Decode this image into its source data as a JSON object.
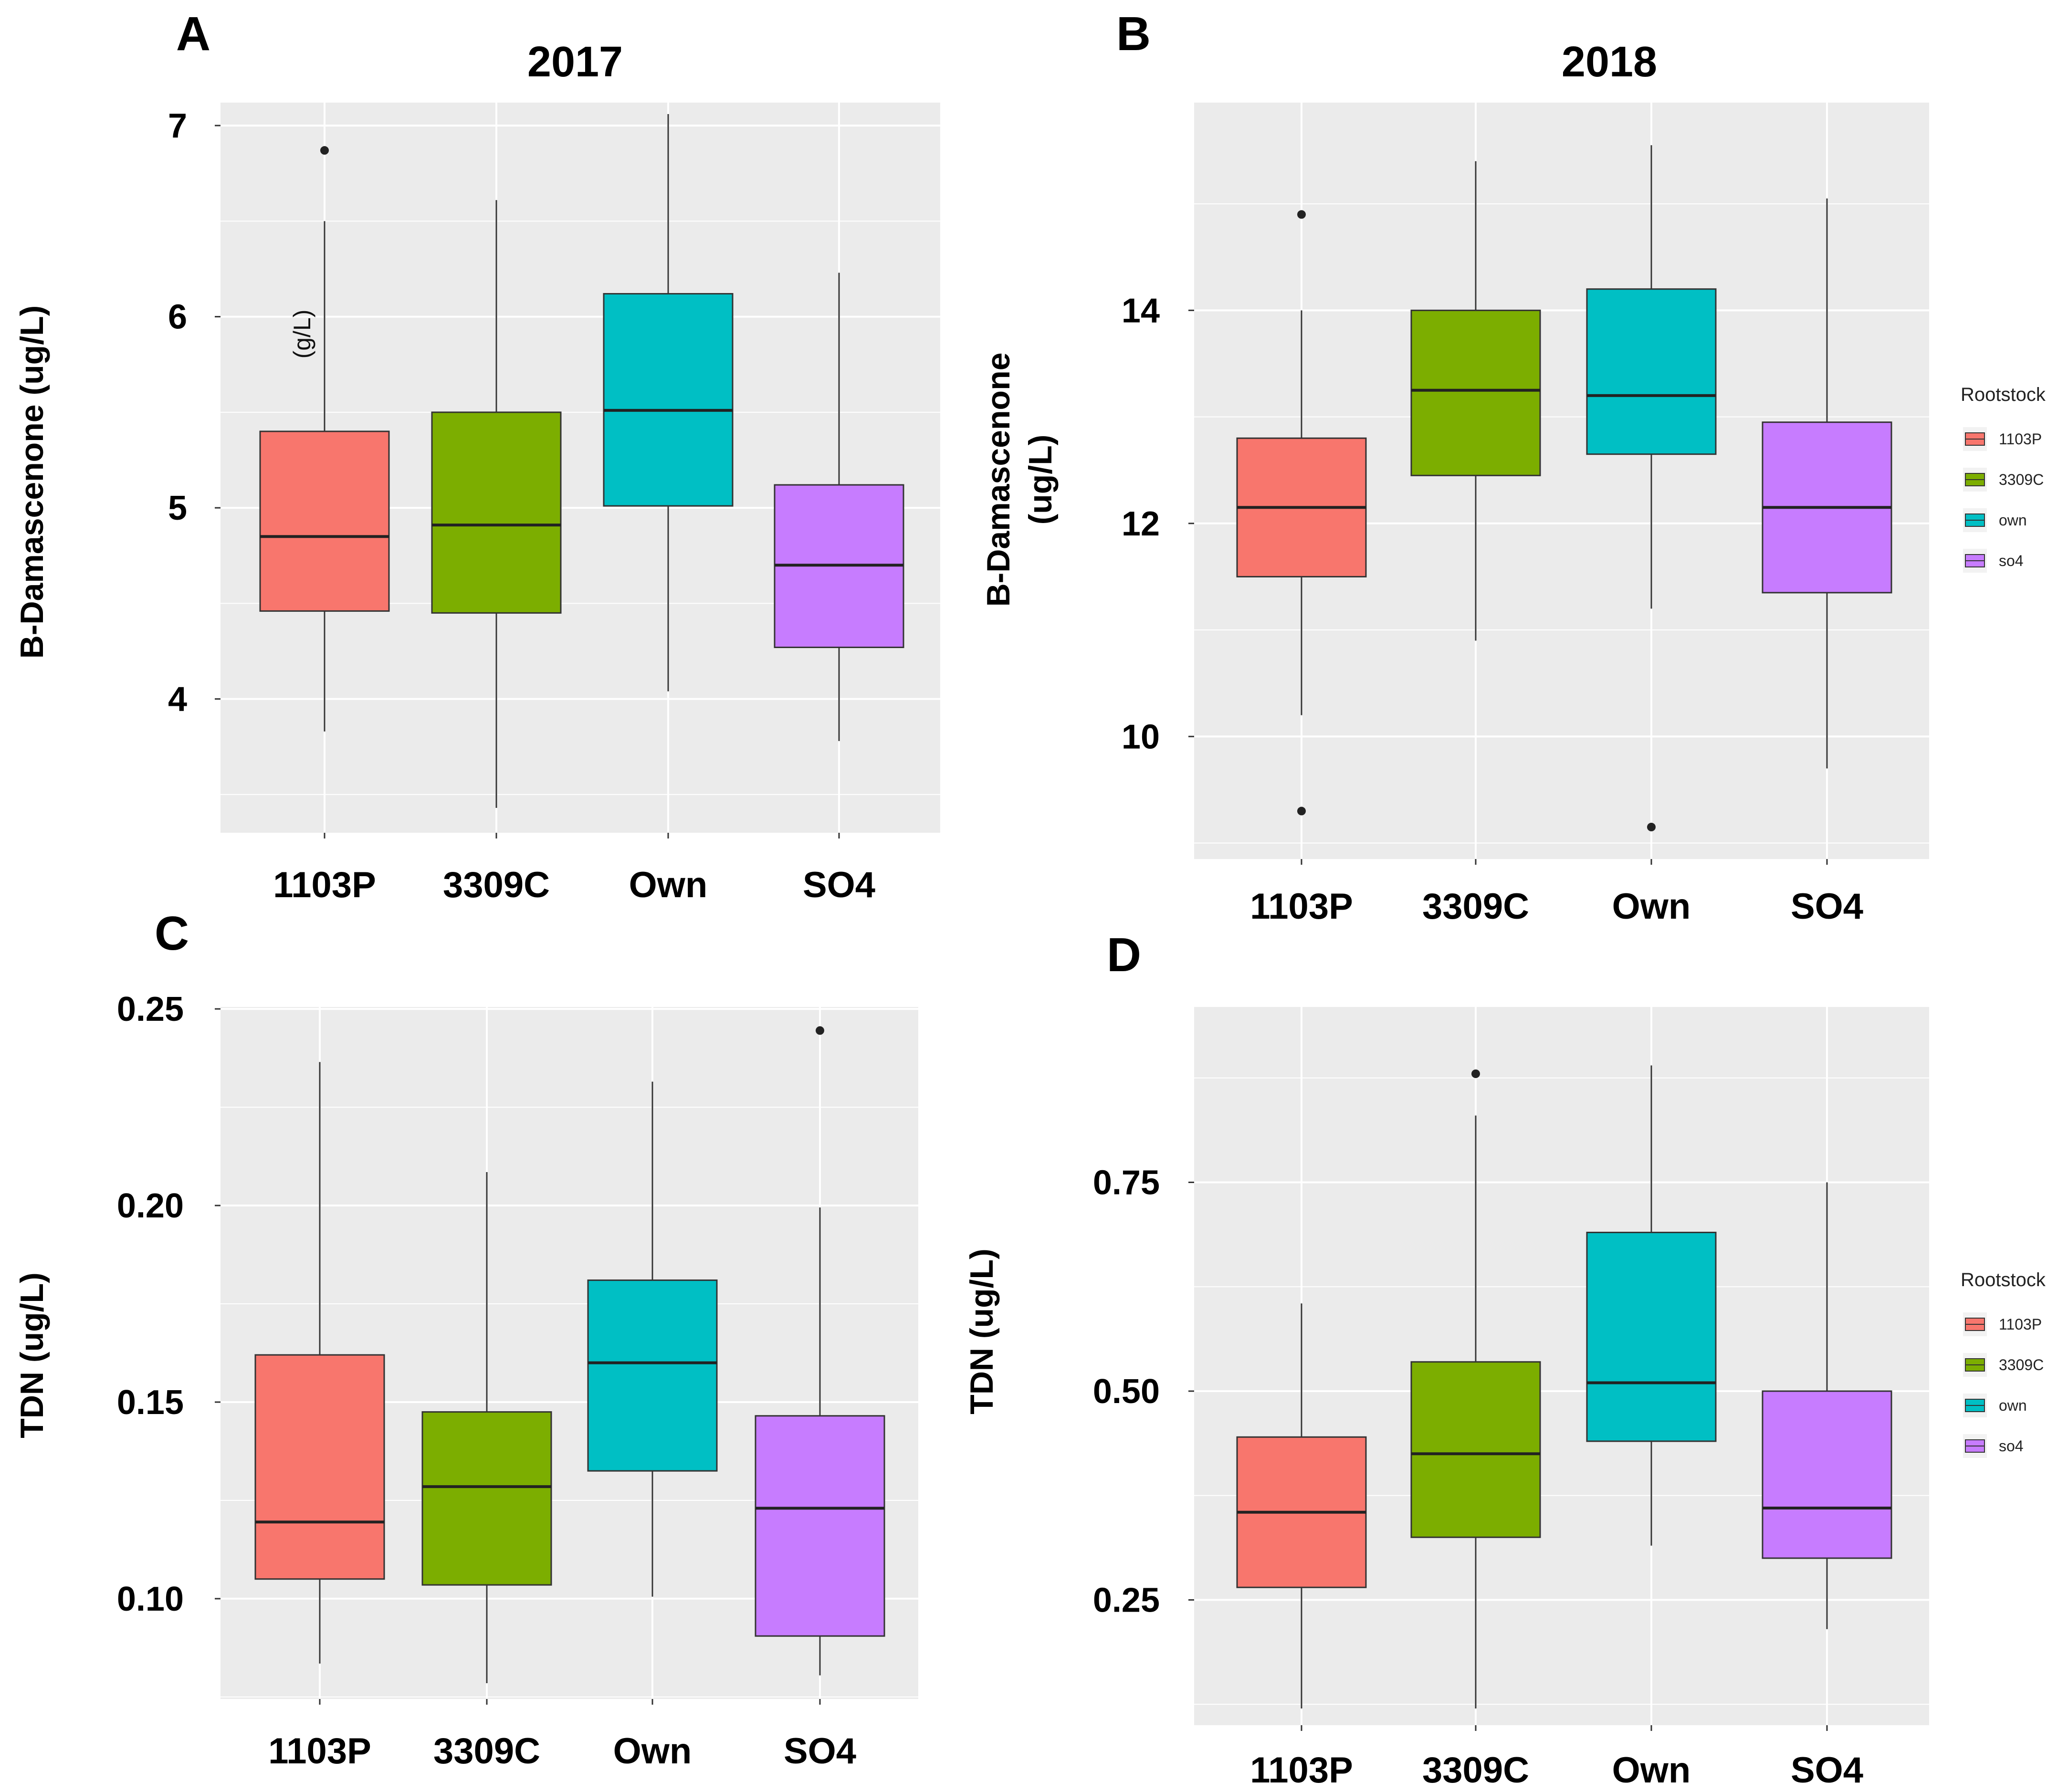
{
  "colors": {
    "1103P": "#F8766D",
    "3309C": "#7CAE00",
    "own": "#00BFC4",
    "so4": "#C77CFF",
    "panel_bg": "#EBEBEB",
    "grid": "#FFFFFF"
  },
  "chart_data": [
    {
      "panel": "A",
      "type": "box",
      "title": "2017",
      "ylabel": "B-Damascenone (ug/L)",
      "ylim": [
        3.3,
        7.12
      ],
      "yticks": [
        4,
        5,
        6,
        7
      ],
      "ytick_labels": [
        "4",
        "5",
        "6",
        "7"
      ],
      "categories": [
        "1103P",
        "3309C",
        "Own",
        "SO4"
      ],
      "annotation": "(g/L)",
      "boxes": [
        {
          "name": "1103P",
          "whisker_low": 3.83,
          "q1": 4.46,
          "median": 4.85,
          "q3": 5.4,
          "whisker_high": 6.5,
          "outliers": [
            6.87
          ]
        },
        {
          "name": "3309C",
          "whisker_low": 3.43,
          "q1": 4.45,
          "median": 4.91,
          "q3": 5.5,
          "whisker_high": 6.61,
          "outliers": []
        },
        {
          "name": "Own",
          "whisker_low": 4.04,
          "q1": 5.01,
          "median": 5.51,
          "q3": 6.12,
          "whisker_high": 7.06,
          "outliers": []
        },
        {
          "name": "SO4",
          "whisker_low": 3.78,
          "q1": 4.27,
          "median": 4.7,
          "q3": 5.12,
          "whisker_high": 6.23,
          "outliers": []
        }
      ]
    },
    {
      "panel": "B",
      "type": "box",
      "title": "2018",
      "ylabel": "B-Damascenone (ug/L)",
      "ylim": [
        8.85,
        15.95
      ],
      "yticks": [
        10,
        12,
        14
      ],
      "ytick_labels": [
        "10",
        "12",
        "14"
      ],
      "categories": [
        "1103P",
        "3309C",
        "Own",
        "SO4"
      ],
      "legend": {
        "title": "Rootstock",
        "items": [
          "1103P",
          "3309C",
          "own",
          "so4"
        ]
      },
      "boxes": [
        {
          "name": "1103P",
          "whisker_low": 10.2,
          "q1": 11.5,
          "median": 12.15,
          "q3": 12.8,
          "whisker_high": 14.0,
          "outliers": [
            14.9,
            9.3
          ]
        },
        {
          "name": "3309C",
          "whisker_low": 10.9,
          "q1": 12.45,
          "median": 13.25,
          "q3": 14.0,
          "whisker_high": 15.4,
          "outliers": []
        },
        {
          "name": "Own",
          "whisker_low": 11.2,
          "q1": 12.65,
          "median": 13.2,
          "q3": 14.2,
          "whisker_high": 15.55,
          "outliers": [
            9.15
          ]
        },
        {
          "name": "SO4",
          "whisker_low": 9.7,
          "q1": 11.35,
          "median": 12.15,
          "q3": 12.95,
          "whisker_high": 15.05,
          "outliers": []
        }
      ]
    },
    {
      "panel": "C",
      "type": "box",
      "ylabel": "TDN (ug/L)",
      "ylim": [
        0.0745,
        0.2505
      ],
      "yticks": [
        0.1,
        0.15,
        0.2,
        0.25
      ],
      "ytick_labels": [
        "0.10",
        "0.15",
        "0.20",
        "0.25"
      ],
      "categories": [
        "1103P",
        "3309C",
        "Own",
        "SO4"
      ],
      "boxes": [
        {
          "name": "1103P",
          "whisker_low": 0.0835,
          "q1": 0.105,
          "median": 0.1195,
          "q3": 0.162,
          "whisker_high": 0.2365,
          "outliers": []
        },
        {
          "name": "3309C",
          "whisker_low": 0.0785,
          "q1": 0.1035,
          "median": 0.1285,
          "q3": 0.1475,
          "whisker_high": 0.2085,
          "outliers": []
        },
        {
          "name": "Own",
          "whisker_low": 0.1005,
          "q1": 0.1325,
          "median": 0.16,
          "q3": 0.181,
          "whisker_high": 0.2315,
          "outliers": []
        },
        {
          "name": "SO4",
          "whisker_low": 0.0805,
          "q1": 0.0905,
          "median": 0.123,
          "q3": 0.1465,
          "whisker_high": 0.1995,
          "outliers": [
            0.2445
          ]
        }
      ]
    },
    {
      "panel": "D",
      "type": "box",
      "ylabel": "TDN (ug/L)",
      "ylim": [
        0.1,
        0.96
      ],
      "yticks": [
        0.25,
        0.5,
        0.75
      ],
      "ytick_labels": [
        "0.25",
        "0.50",
        "0.75"
      ],
      "categories": [
        "1103P",
        "3309C",
        "Own",
        "SO4"
      ],
      "legend": {
        "title": "Rootstock",
        "items": [
          "1103P",
          "3309C",
          "own",
          "so4"
        ]
      },
      "boxes": [
        {
          "name": "1103P",
          "whisker_low": 0.12,
          "q1": 0.265,
          "median": 0.355,
          "q3": 0.445,
          "whisker_high": 0.605,
          "outliers": []
        },
        {
          "name": "3309C",
          "whisker_low": 0.12,
          "q1": 0.325,
          "median": 0.425,
          "q3": 0.535,
          "whisker_high": 0.83,
          "outliers": [
            0.88
          ]
        },
        {
          "name": "Own",
          "whisker_low": 0.315,
          "q1": 0.44,
          "median": 0.51,
          "q3": 0.69,
          "whisker_high": 0.89,
          "outliers": []
        },
        {
          "name": "SO4",
          "whisker_low": 0.215,
          "q1": 0.3,
          "median": 0.36,
          "q3": 0.5,
          "whisker_high": 0.75,
          "outliers": []
        }
      ]
    }
  ]
}
